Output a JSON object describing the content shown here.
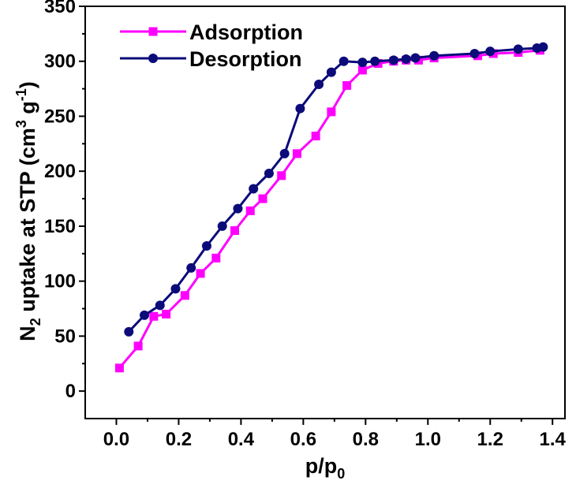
{
  "chart_data": {
    "type": "line",
    "xlabel": {
      "main": "p/p",
      "sub": "0"
    },
    "ylabel": {
      "pre": "N",
      "sub": "2",
      "mid": " uptake at STP (cm",
      "sup1": "3",
      "space": " g",
      "sup2": "-1",
      "post": ")"
    },
    "xlim": [
      -0.1,
      1.44
    ],
    "ylim": [
      -25,
      350
    ],
    "xticks": [
      0.0,
      0.2,
      0.4,
      0.6,
      0.8,
      1.0,
      1.2,
      1.4
    ],
    "xtick_labels": [
      "0.0",
      "0.2",
      "0.4",
      "0.6",
      "0.8",
      "1.0",
      "1.2",
      "1.4"
    ],
    "yticks": [
      0,
      50,
      100,
      150,
      200,
      250,
      300,
      350
    ],
    "ytick_labels": [
      "0",
      "50",
      "100",
      "150",
      "200",
      "250",
      "300",
      "350"
    ],
    "legend_position": "top-left",
    "series": [
      {
        "name": "Adsorption",
        "color": "#ff00ff",
        "marker": "square",
        "x": [
          0.01,
          0.07,
          0.12,
          0.16,
          0.22,
          0.27,
          0.32,
          0.38,
          0.43,
          0.47,
          0.53,
          0.58,
          0.64,
          0.69,
          0.74,
          0.79,
          0.84,
          0.89,
          0.93,
          0.97,
          1.02,
          1.16,
          1.21,
          1.29,
          1.36
        ],
        "y": [
          21,
          41,
          68,
          70,
          87,
          107,
          121,
          146,
          164,
          175,
          196,
          216,
          232,
          254,
          278,
          292,
          298,
          300,
          301,
          301,
          303,
          305,
          307,
          308,
          310
        ]
      },
      {
        "name": "Desorption",
        "color": "#0b0b7a",
        "marker": "circle",
        "x": [
          0.04,
          0.09,
          0.14,
          0.19,
          0.24,
          0.29,
          0.34,
          0.39,
          0.44,
          0.49,
          0.54,
          0.59,
          0.65,
          0.69,
          0.73,
          0.79,
          0.83,
          0.89,
          0.93,
          0.96,
          1.02,
          1.15,
          1.2,
          1.29,
          1.35,
          1.37
        ],
        "y": [
          54,
          69,
          78,
          93,
          112,
          132,
          150,
          166,
          184,
          198,
          216,
          257,
          279,
          290,
          300,
          299,
          300,
          301,
          302,
          303,
          305,
          307,
          309,
          311,
          312,
          313
        ]
      }
    ]
  }
}
